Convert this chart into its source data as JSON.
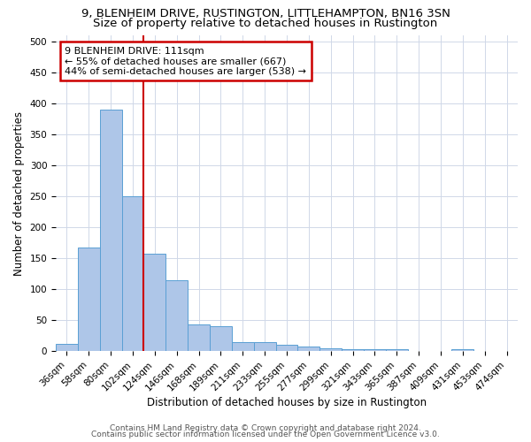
{
  "title1": "9, BLENHEIM DRIVE, RUSTINGTON, LITTLEHAMPTON, BN16 3SN",
  "title2": "Size of property relative to detached houses in Rustington",
  "xlabel": "Distribution of detached houses by size in Rustington",
  "ylabel": "Number of detached properties",
  "categories": [
    "36sqm",
    "58sqm",
    "80sqm",
    "102sqm",
    "124sqm",
    "146sqm",
    "168sqm",
    "189sqm",
    "211sqm",
    "233sqm",
    "255sqm",
    "277sqm",
    "299sqm",
    "321sqm",
    "343sqm",
    "365sqm",
    "387sqm",
    "409sqm",
    "431sqm",
    "453sqm",
    "474sqm"
  ],
  "values": [
    12,
    168,
    390,
    250,
    158,
    115,
    44,
    40,
    15,
    15,
    10,
    8,
    5,
    4,
    3,
    3,
    0,
    0,
    4,
    0,
    0
  ],
  "bar_color": "#aec6e8",
  "bar_edge_color": "#5a9fd4",
  "property_line_color": "#cc0000",
  "annotation_text": "9 BLENHEIM DRIVE: 111sqm\n← 55% of detached houses are smaller (667)\n44% of semi-detached houses are larger (538) →",
  "annotation_box_color": "#ffffff",
  "annotation_box_edge": "#cc0000",
  "ylim": [
    0,
    510
  ],
  "yticks": [
    0,
    50,
    100,
    150,
    200,
    250,
    300,
    350,
    400,
    450,
    500
  ],
  "footer1": "Contains HM Land Registry data © Crown copyright and database right 2024.",
  "footer2": "Contains public sector information licensed under the Open Government Licence v3.0.",
  "bg_color": "#ffffff",
  "grid_color": "#d0d8e8",
  "title1_fontsize": 9.5,
  "title2_fontsize": 9.5,
  "axis_fontsize": 8.5,
  "tick_fontsize": 7.5,
  "annotation_fontsize": 8,
  "footer_fontsize": 6.5
}
